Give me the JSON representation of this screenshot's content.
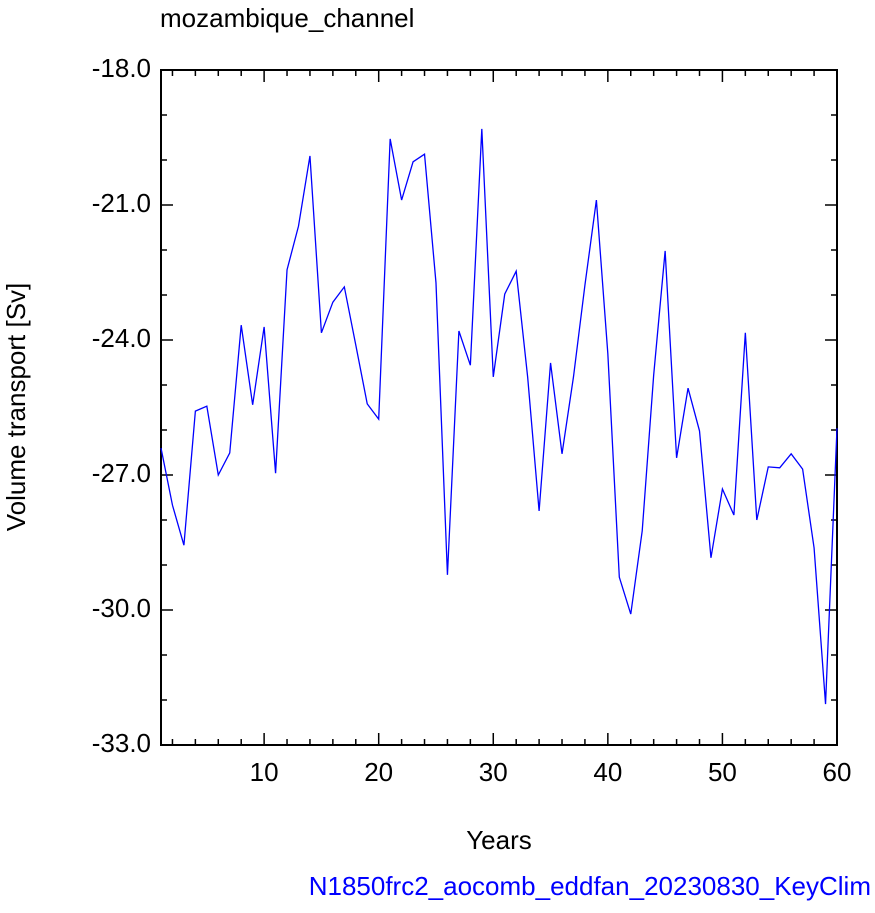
{
  "chart_data": {
    "type": "line",
    "title": "mozambique_channel",
    "xlabel": "Years",
    "ylabel": "Volume transport [Sv]",
    "footer": "N1850frc2_aocomb_eddfan_20230830_KeyClim",
    "color": "#0000ff",
    "x": [
      1,
      2,
      3,
      4,
      5,
      6,
      7,
      8,
      9,
      10,
      11,
      12,
      13,
      14,
      15,
      16,
      17,
      18,
      19,
      20,
      21,
      22,
      23,
      24,
      25,
      26,
      27,
      28,
      29,
      30,
      31,
      32,
      33,
      34,
      35,
      36,
      37,
      38,
      39,
      40,
      41,
      42,
      43,
      44,
      45,
      46,
      47,
      48,
      49,
      50,
      51,
      52,
      53,
      54,
      55,
      56,
      57,
      58,
      59,
      60
    ],
    "values": [
      -26.4,
      -27.67,
      -28.56,
      -25.58,
      -25.47,
      -27.0,
      -26.51,
      -23.67,
      -25.44,
      -23.71,
      -26.96,
      -22.44,
      -21.47,
      -19.91,
      -23.84,
      -23.16,
      -22.82,
      -24.11,
      -25.42,
      -25.76,
      -19.53,
      -20.89,
      -20.04,
      -19.87,
      -22.73,
      -29.22,
      -23.8,
      -24.56,
      -19.31,
      -24.82,
      -22.98,
      -22.47,
      -24.82,
      -27.8,
      -24.51,
      -26.53,
      -24.82,
      -22.78,
      -20.89,
      -24.31,
      -29.27,
      -30.09,
      -28.24,
      -24.78,
      -22.02,
      -26.62,
      -25.07,
      -26.02,
      -28.84,
      -27.31,
      -27.89,
      -23.84,
      -28.0,
      -26.82,
      -26.84,
      -26.53,
      -26.87,
      -28.62,
      -32.09,
      -25.96
    ],
    "xlim": [
      1,
      60
    ],
    "ylim": [
      -33,
      -18
    ],
    "xticks": [
      10,
      20,
      30,
      40,
      50,
      60
    ],
    "xminorticks": [
      2,
      4,
      6,
      8,
      12,
      14,
      16,
      18,
      22,
      24,
      26,
      28,
      32,
      34,
      36,
      38,
      42,
      44,
      46,
      48,
      52,
      54,
      56,
      58
    ],
    "yticks": [
      {
        "value": -33,
        "label": "-33.0"
      },
      {
        "value": -30,
        "label": "-30.0"
      },
      {
        "value": -27,
        "label": "-27.0"
      },
      {
        "value": -24,
        "label": "-24.0"
      },
      {
        "value": -21,
        "label": "-21.0"
      },
      {
        "value": -18,
        "label": "-18.0"
      }
    ],
    "yminorticks": [
      -32,
      -31,
      -29,
      -28,
      -26,
      -25,
      -23,
      -22,
      -20,
      -19
    ]
  }
}
